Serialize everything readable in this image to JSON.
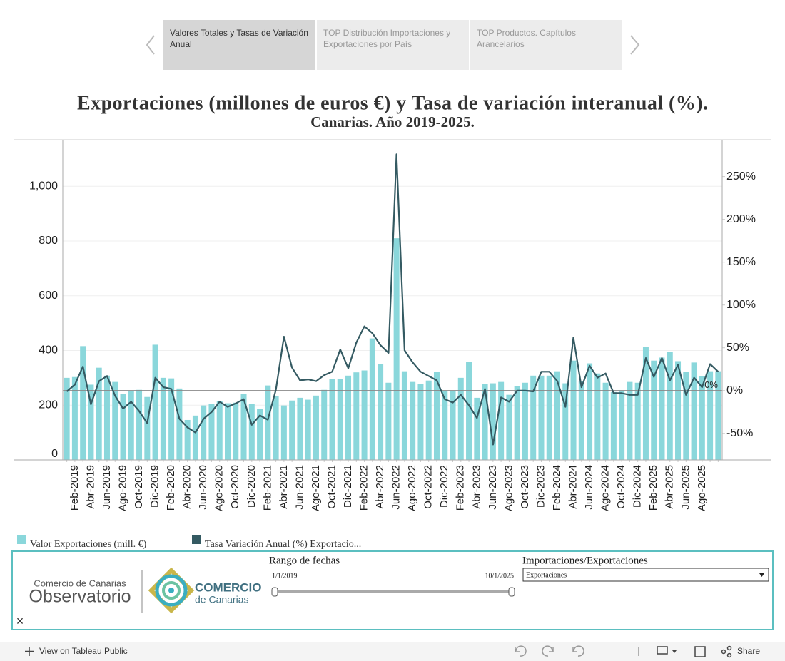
{
  "tabs": [
    "Valores Totales y Tasas de Variación Anual",
    "TOP Distribución Importaciones y Exportaciones por País",
    "TOP Productos. Capítulos Arancelarios"
  ],
  "chart_data": {
    "type": "combo",
    "title": "Exportaciones (millones de euros €) y Tasa de variación interanual (%).",
    "subtitle": "Canarias. Año 2019-2025.",
    "categories": [
      null,
      "Feb-2019",
      null,
      "Abr-2019",
      null,
      "Jun-2019",
      null,
      "Ago-2019",
      null,
      "Oct-2019",
      null,
      "Dic-2019",
      null,
      "Feb-2020",
      null,
      "Abr-2020",
      null,
      "Jun-2020",
      null,
      "Ago-2020",
      null,
      "Oct-2020",
      null,
      "Dic-2020",
      null,
      "Feb-2021",
      null,
      "Abr-2021",
      null,
      "Jun-2021",
      null,
      "Ago-2021",
      null,
      "Oct-2021",
      null,
      "Dic-2021",
      null,
      "Feb-2022",
      null,
      "Abr-2022",
      null,
      "Jun-2022",
      null,
      "Ago-2022",
      null,
      "Oct-2022",
      null,
      "Dic-2022",
      null,
      "Feb-2023",
      null,
      "Abr-2023",
      null,
      "Jun-2023",
      null,
      "Ago-2023",
      null,
      "Oct-2023",
      null,
      "Dic-2023",
      null,
      "Feb-2024",
      null,
      "Abr-2024",
      null,
      "Jun-2024",
      null,
      "Ago-2024",
      null,
      "Oct-2024",
      null,
      "Dic-2024",
      null,
      "Feb-2025",
      null,
      "Abr-2025",
      null,
      "Jun-2025",
      null,
      "Ago-2025",
      null,
      null
    ],
    "series": [
      {
        "name": "Valor Exportaciones (mill. €)",
        "type": "bar",
        "color": "#8ad7db",
        "values": [
          300,
          303,
          416,
          275,
          337,
          308,
          285,
          241,
          254,
          256,
          230,
          421,
          300,
          298,
          261,
          146,
          162,
          199,
          204,
          214,
          207,
          209,
          241,
          204,
          186,
          272,
          233,
          199,
          217,
          227,
          220,
          235,
          256,
          295,
          295,
          308,
          320,
          327,
          444,
          350,
          282,
          810,
          324,
          285,
          277,
          290,
          322,
          251,
          254,
          300,
          358,
          227,
          277,
          280,
          285,
          238,
          269,
          282,
          308,
          308,
          308,
          324,
          280,
          363,
          288,
          353,
          316,
          282,
          248,
          251,
          285,
          282,
          413,
          363,
          374,
          395,
          361,
          322,
          356,
          306,
          324,
          324
        ]
      },
      {
        "name": "Tasa Variación Anual (%) Exportacio...",
        "type": "line",
        "axis": "y2",
        "color": "#345a62",
        "values": [
          -1,
          7,
          28,
          -16,
          11,
          17,
          -6,
          -21,
          -13,
          -24,
          -38,
          15,
          4,
          2,
          -33,
          -43,
          -49,
          -33,
          -25,
          -13,
          -19,
          -15,
          -10,
          -40,
          -29,
          -34,
          1,
          63,
          27,
          12,
          13,
          11,
          18,
          22,
          48,
          26,
          56,
          75,
          67,
          53,
          44,
          276,
          47,
          33,
          22,
          17,
          12,
          -10,
          -14,
          -5,
          -17,
          -32,
          2,
          -63,
          -8,
          -13,
          0,
          0,
          -1,
          22,
          22,
          11,
          -19,
          62,
          4,
          29,
          15,
          20,
          -3,
          -3,
          -5,
          -5,
          38,
          16,
          38,
          12,
          30,
          -5,
          15,
          4,
          31,
          22
        ]
      }
    ],
    "ylim": [
      0,
      1170
    ],
    "yticks": [
      0,
      200,
      400,
      600,
      800,
      {
        "value": 1000,
        "label": "1,000"
      }
    ],
    "y2lim": [
      -81,
      293
    ],
    "y2ticks": [
      {
        "value": -50,
        "label": "-50%"
      },
      {
        "value": 0,
        "label": "0%"
      },
      {
        "value": 50,
        "label": "50%"
      },
      {
        "value": 100,
        "label": "100%"
      },
      {
        "value": 150,
        "label": "150%"
      },
      {
        "value": 200,
        "label": "200%"
      },
      {
        "value": 250,
        "label": "250%"
      }
    ],
    "reference_line": {
      "value": 0,
      "label": "0%"
    },
    "grid": true
  },
  "filters": {
    "date_range": {
      "label": "Rango de fechas",
      "start": "1/1/2019",
      "end": "10/1/2025"
    },
    "flow": {
      "label": "Importaciones/Exportaciones",
      "selected": "Exportaciones"
    }
  },
  "logo": {
    "line1": "Comercio de Canarias",
    "line2": "Observatorio",
    "brand1": "COMERCIO",
    "brand2": "de Canarias"
  },
  "toolbar": {
    "view": "View on Tableau Public",
    "share": "Share"
  }
}
